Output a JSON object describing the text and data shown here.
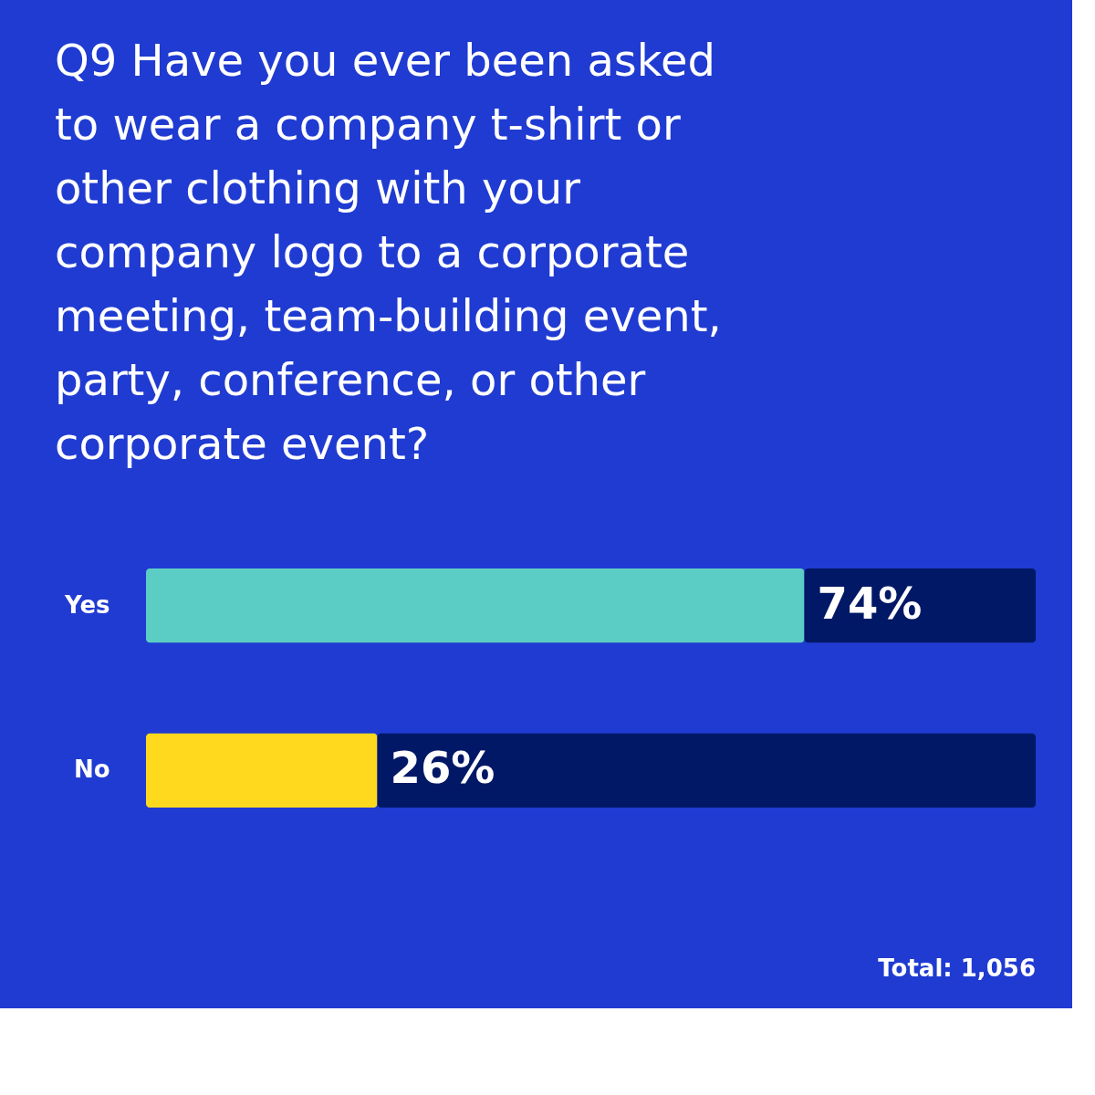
{
  "chart_data": {
    "type": "bar",
    "orientation": "horizontal",
    "stacked": true,
    "title": "Q9 Have you ever been asked to wear a company t-shirt or other clothing with your company logo to a corporate meeting, team-building event, party, conference, or other corporate event?",
    "categories": [
      "Yes",
      "No"
    ],
    "series": [
      {
        "colors": [
          "#5bcdc4",
          "#ffd91e"
        ],
        "values": [
          74,
          26
        ],
        "value_labels": [
          "74%",
          "26%"
        ]
      },
      {
        "color": "#001866",
        "values": [
          26,
          74
        ]
      }
    ],
    "xlim": [
      0,
      100
    ],
    "tick_labels": "y",
    "grid": false,
    "annotations": [
      "Total: 1,056"
    ]
  }
}
